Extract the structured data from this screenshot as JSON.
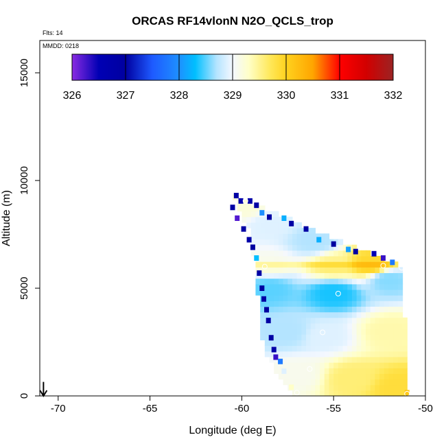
{
  "chart_data": {
    "type": "heatmap",
    "title": "ORCAS RF14vlonN N2O_QCLS_trop",
    "xlabel": "Longitude (deg E)",
    "ylabel": "Altitude (m)",
    "xlim": [
      -71,
      -50
    ],
    "ylim": [
      0,
      16500
    ],
    "xticks": [
      -70,
      -65,
      -60,
      -55,
      -50
    ],
    "yticks": [
      0,
      5000,
      10000,
      15000
    ],
    "annotations": {
      "flights": "Flts: 14",
      "date": "MMDD: 0218"
    },
    "colorbar": {
      "ticks": [
        326,
        327,
        328,
        329,
        330,
        331,
        332
      ],
      "range": [
        326,
        332
      ],
      "stops": [
        {
          "v": 326.0,
          "c": "#8a2be2"
        },
        {
          "v": 326.5,
          "c": "#0000b4"
        },
        {
          "v": 327.0,
          "c": "#0000a0"
        },
        {
          "v": 327.5,
          "c": "#1e5aff"
        },
        {
          "v": 328.0,
          "c": "#1e90ff"
        },
        {
          "v": 328.3,
          "c": "#00bfff"
        },
        {
          "v": 328.7,
          "c": "#b4e4ff"
        },
        {
          "v": 329.0,
          "c": "#f4f8ff"
        },
        {
          "v": 329.3,
          "c": "#ffffc8"
        },
        {
          "v": 329.7,
          "c": "#ffe85a"
        },
        {
          "v": 330.0,
          "c": "#ffd21e"
        },
        {
          "v": 330.5,
          "c": "#ffa500"
        },
        {
          "v": 331.0,
          "c": "#ff0000"
        },
        {
          "v": 331.5,
          "c": "#d20000"
        },
        {
          "v": 332.0,
          "c": "#9b2323"
        }
      ]
    },
    "field": {
      "region": [
        [
          -60.5,
          9300
        ],
        [
          -51.2,
          6000
        ],
        [
          -51.0,
          0
        ],
        [
          -57.2,
          0
        ],
        [
          -58.8,
          2000
        ],
        [
          -59.5,
          7500
        ]
      ],
      "grid_step_lon": 0.25,
      "grid_step_alt": 260,
      "anchors": [
        {
          "lon": -59.8,
          "alt": 8800,
          "v": 329.2
        },
        {
          "lon": -58.5,
          "alt": 8000,
          "v": 328.9
        },
        {
          "lon": -56.0,
          "alt": 7200,
          "v": 328.7
        },
        {
          "lon": -53.0,
          "alt": 6150,
          "v": 329.9
        },
        {
          "lon": -58.5,
          "alt": 6050,
          "v": 329.1
        },
        {
          "lon": -55.0,
          "alt": 6050,
          "v": 329.5
        },
        {
          "lon": -58.5,
          "alt": 5000,
          "v": 328.5
        },
        {
          "lon": -55.0,
          "alt": 4800,
          "v": 328.35
        },
        {
          "lon": -52.0,
          "alt": 5400,
          "v": 328.6
        },
        {
          "lon": -57.5,
          "alt": 3000,
          "v": 328.7
        },
        {
          "lon": -55.5,
          "alt": 2800,
          "v": 328.9
        },
        {
          "lon": -52.0,
          "alt": 3000,
          "v": 329.4
        },
        {
          "lon": -57.0,
          "alt": 1000,
          "v": 329.1
        },
        {
          "lon": -54.0,
          "alt": 800,
          "v": 329.6
        },
        {
          "lon": -51.5,
          "alt": 400,
          "v": 329.85
        }
      ],
      "edge_points": [
        {
          "lon": -60.3,
          "alt": 9300,
          "v": 326.9
        },
        {
          "lon": -60.05,
          "alt": 9050,
          "v": 326.7
        },
        {
          "lon": -59.55,
          "alt": 9050,
          "v": 326.8
        },
        {
          "lon": -59.2,
          "alt": 8850,
          "v": 326.9
        },
        {
          "lon": -58.9,
          "alt": 8500,
          "v": 328.0
        },
        {
          "lon": -58.5,
          "alt": 8300,
          "v": 326.9
        },
        {
          "lon": -57.7,
          "alt": 8250,
          "v": 328.2
        },
        {
          "lon": -57.3,
          "alt": 8000,
          "v": 326.9
        },
        {
          "lon": -56.5,
          "alt": 7750,
          "v": 326.9
        },
        {
          "lon": -55.8,
          "alt": 7250,
          "v": 328.2
        },
        {
          "lon": -55.0,
          "alt": 7050,
          "v": 327.0
        },
        {
          "lon": -54.2,
          "alt": 6800,
          "v": 328.1
        },
        {
          "lon": -53.8,
          "alt": 6700,
          "v": 326.9
        },
        {
          "lon": -52.8,
          "alt": 6600,
          "v": 326.5
        },
        {
          "lon": -52.3,
          "alt": 6400,
          "v": 326.3
        },
        {
          "lon": -51.8,
          "alt": 6200,
          "v": 327.8
        },
        {
          "lon": -60.5,
          "alt": 8750,
          "v": 326.9
        },
        {
          "lon": -60.25,
          "alt": 8250,
          "v": 326.2
        },
        {
          "lon": -59.9,
          "alt": 7750,
          "v": 326.9
        },
        {
          "lon": -59.6,
          "alt": 7250,
          "v": 326.8
        },
        {
          "lon": -59.4,
          "alt": 6900,
          "v": 327.0
        },
        {
          "lon": -59.2,
          "alt": 6400,
          "v": 328.3
        },
        {
          "lon": -59.05,
          "alt": 5700,
          "v": 326.9
        },
        {
          "lon": -58.9,
          "alt": 5000,
          "v": 327.0
        },
        {
          "lon": -58.8,
          "alt": 4500,
          "v": 326.9
        },
        {
          "lon": -58.65,
          "alt": 4000,
          "v": 327.0
        },
        {
          "lon": -58.55,
          "alt": 3500,
          "v": 326.9
        },
        {
          "lon": -58.4,
          "alt": 2700,
          "v": 326.9
        },
        {
          "lon": -58.25,
          "alt": 2150,
          "v": 326.8
        },
        {
          "lon": -58.15,
          "alt": 1800,
          "v": 326.3
        },
        {
          "lon": -57.9,
          "alt": 1600,
          "v": 327.8
        },
        {
          "lon": -57.7,
          "alt": 1150,
          "v": 328.9
        },
        {
          "lon": -57.3,
          "alt": 400,
          "v": 329.3
        },
        {
          "lon": -51.0,
          "alt": 150,
          "v": 330.1
        }
      ],
      "circles": [
        {
          "lon": -59.8,
          "alt": 9050
        },
        {
          "lon": -58.75,
          "alt": 6000
        },
        {
          "lon": -52.3,
          "alt": 6050
        },
        {
          "lon": -51.3,
          "alt": 5950
        },
        {
          "lon": -54.75,
          "alt": 4750
        },
        {
          "lon": -55.6,
          "alt": 2950
        },
        {
          "lon": -56.3,
          "alt": 1250
        },
        {
          "lon": -57.0,
          "alt": 150
        },
        {
          "lon": -51.0,
          "alt": 100
        }
      ]
    },
    "arrow": {
      "lon": -70.8,
      "alt_from": 650,
      "alt_to": 0
    }
  }
}
